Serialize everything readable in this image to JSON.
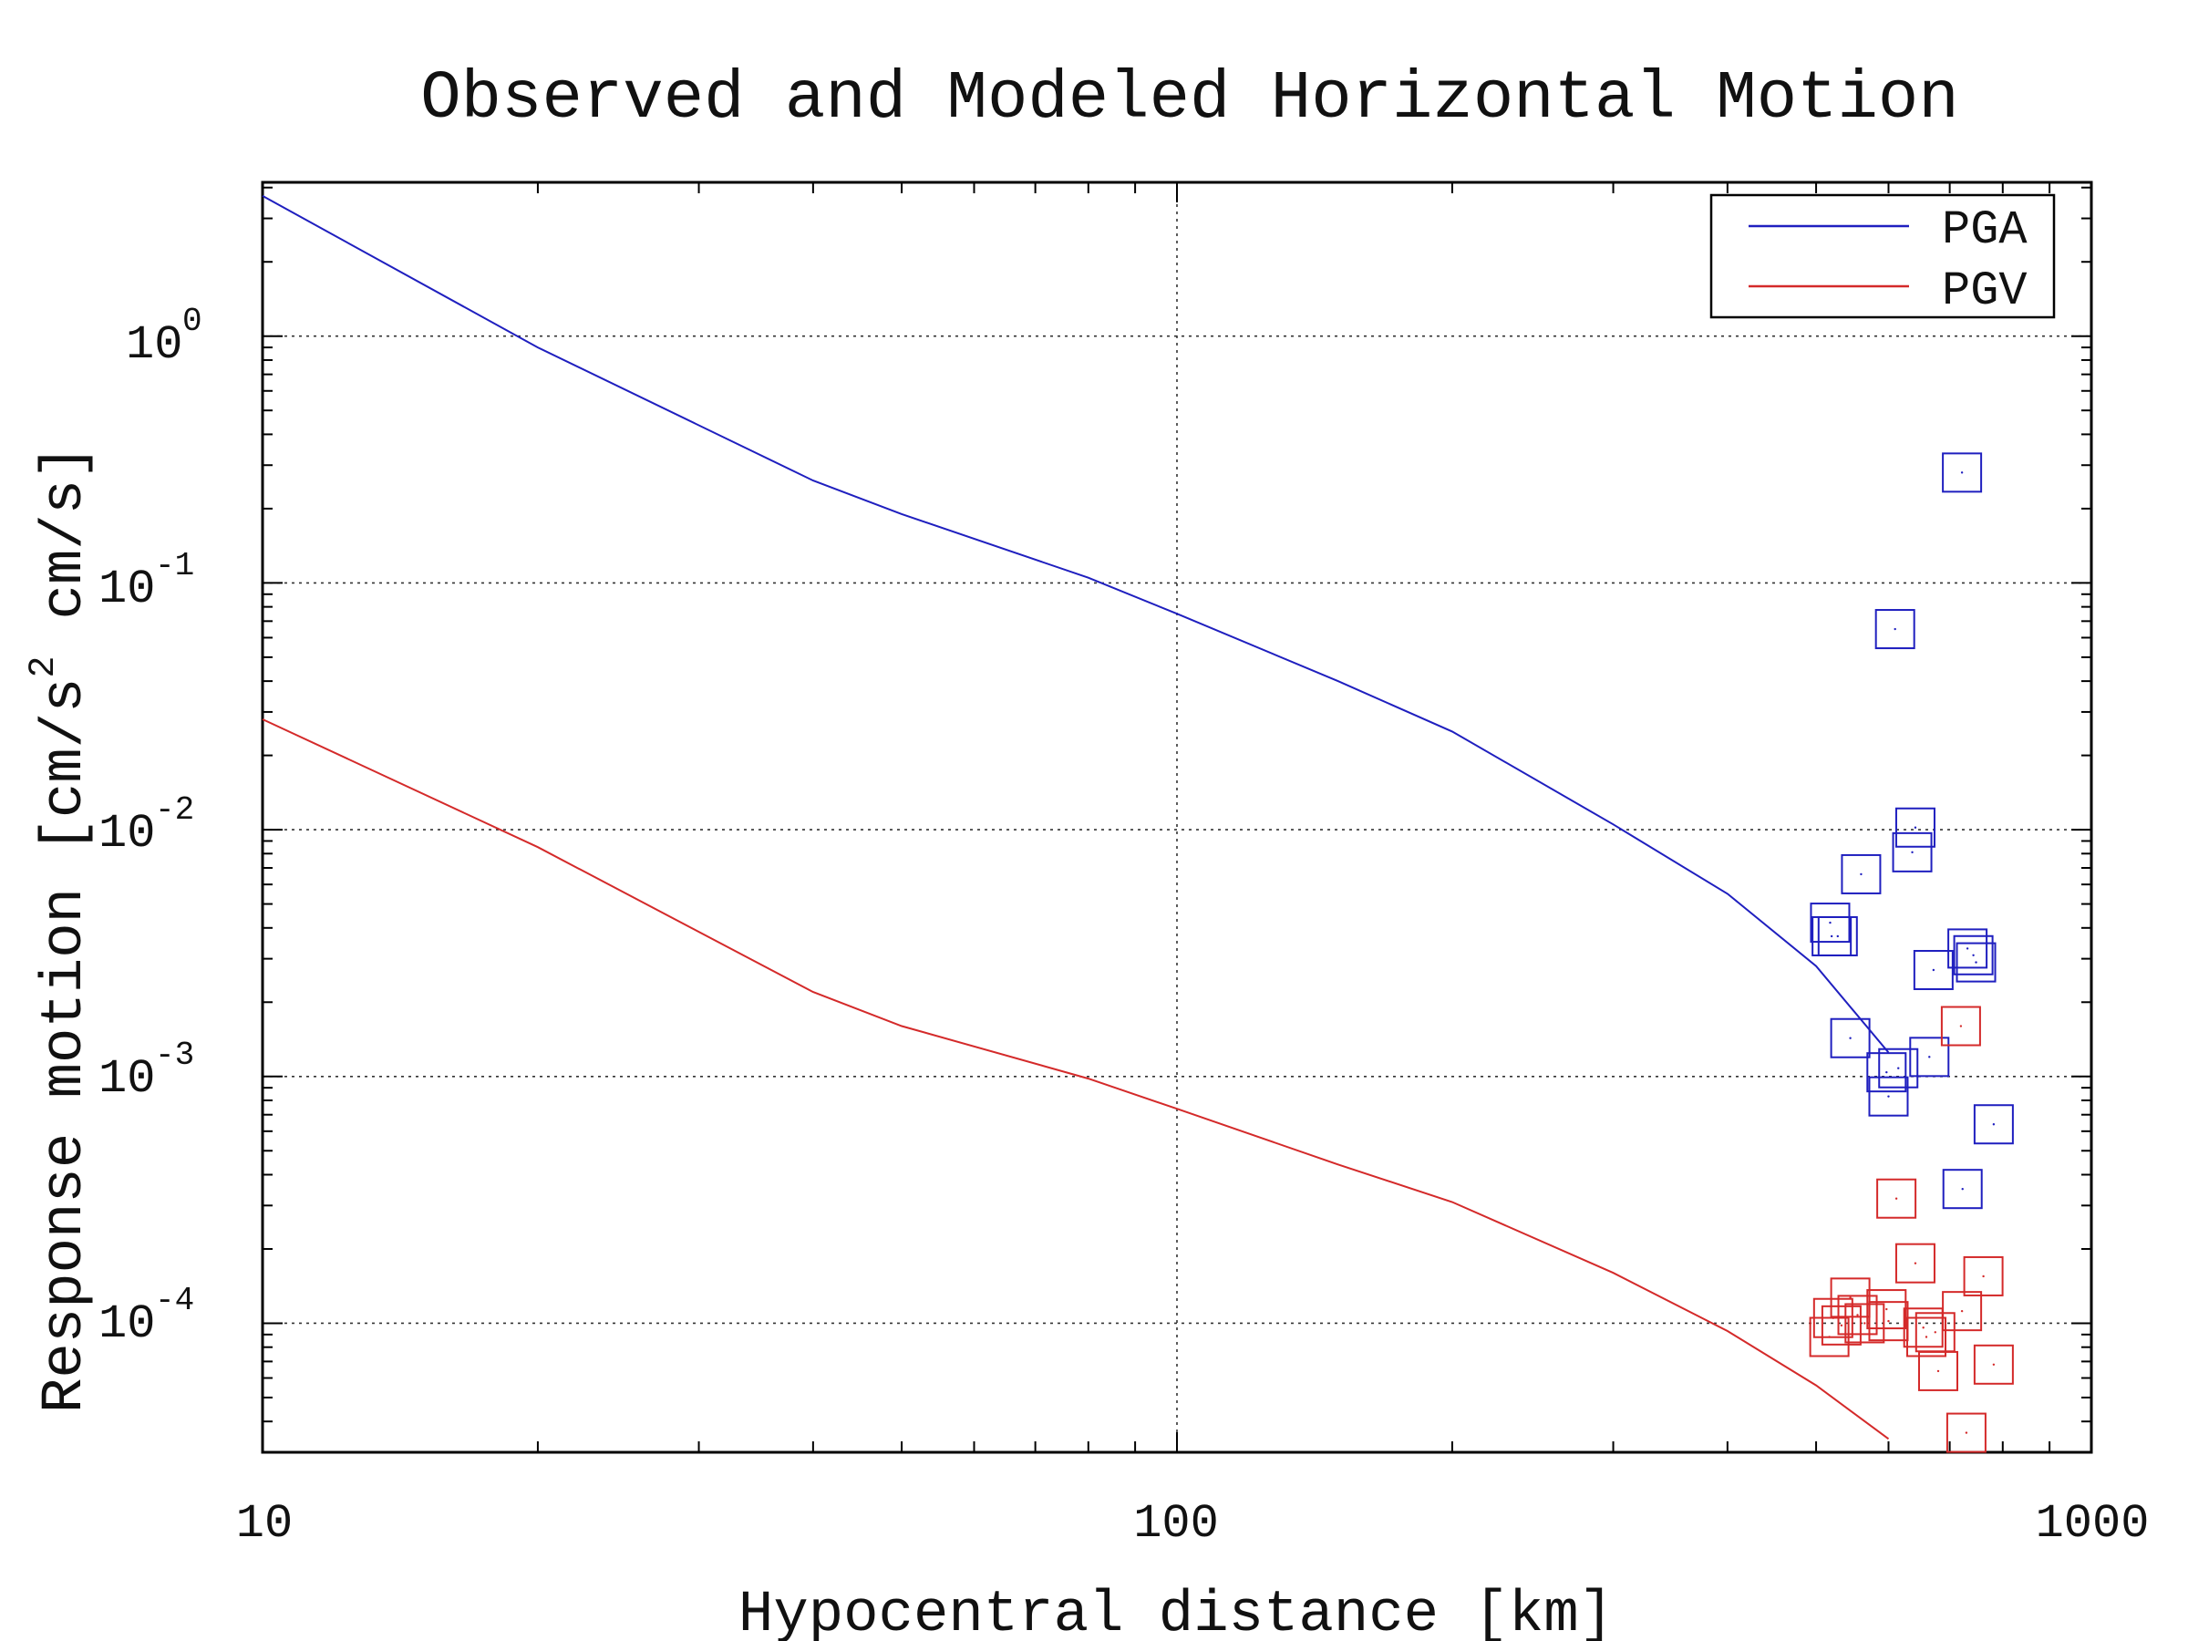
{
  "chart_data": {
    "type": "line",
    "title": "Observed and Modeled Horizontal Motion",
    "xlabel": "Hypocentral distance [km]",
    "ylabel": "Response motion [cm/s",
    "ylabel_sup": "2",
    "ylabel_tail": "cm/s]",
    "xscale": "log",
    "yscale": "log",
    "xlim": [
      10,
      1000
    ],
    "ylim": [
      3e-05,
      4.2
    ],
    "x_tick_labels": [
      "10",
      "100",
      "1000"
    ],
    "y_tick_labels": [
      {
        "base": "10",
        "exp": "0"
      },
      {
        "base": "10",
        "exp": "-1"
      },
      {
        "base": "10",
        "exp": "-2"
      },
      {
        "base": "10",
        "exp": "-3"
      },
      {
        "base": "10",
        "exp": "-4"
      }
    ],
    "grid": true,
    "legend_position": "top-right",
    "series": [
      {
        "name": "PGA",
        "color": "#1f1fbf",
        "line": {
          "x": [
            10,
            20,
            40,
            50,
            80,
            100,
            150,
            200,
            300,
            400,
            500,
            600
          ],
          "y": [
            3.7,
            0.9,
            0.26,
            0.19,
            0.105,
            0.075,
            0.04,
            0.025,
            0.0105,
            0.0055,
            0.0028,
            0.00125
          ]
        },
        "observed": {
          "x": [
            520,
            518,
            528,
            545,
            560,
            597,
            610,
            600,
            642,
            637,
            615,
            672,
            665,
            722,
            748,
            732,
            743,
            782,
            723
          ],
          "y": [
            0.0037,
            0.0042,
            0.0037,
            0.00143,
            0.0066,
            0.00104,
            0.065,
            0.00083,
            0.0102,
            0.0081,
            0.00108,
            0.0027,
            0.0012,
            0.28,
            0.0029,
            0.0033,
            0.0031,
            0.00064,
            0.00035
          ]
        }
      },
      {
        "name": "PGV",
        "color": "#d42a2a",
        "line": {
          "x": [
            10,
            20,
            40,
            50,
            80,
            100,
            150,
            200,
            300,
            400,
            500,
            600
          ],
          "y": [
            0.028,
            0.0085,
            0.0022,
            0.0016,
            0.00098,
            0.00074,
            0.00044,
            0.00031,
            0.00016,
            9.3e-05,
            5.6e-05,
            3.4e-05
          ]
        },
        "observed": {
          "x": [
            517,
            522,
            545,
            533,
            565,
            555,
            597,
            600,
            612,
            642,
            655,
            660,
            675,
            680,
            720,
            722,
            730,
            762,
            782
          ],
          "y": [
            8.8e-05,
            0.000105,
            0.000127,
            9.8e-05,
            0.0001,
            0.000108,
            0.000114,
            0.000102,
            0.00032,
            0.000175,
            9.6e-05,
            8.8e-05,
            9.2e-05,
            6.4e-05,
            0.0016,
            0.000112,
            3.6e-05,
            0.000155,
            6.8e-05
          ]
        }
      }
    ]
  }
}
